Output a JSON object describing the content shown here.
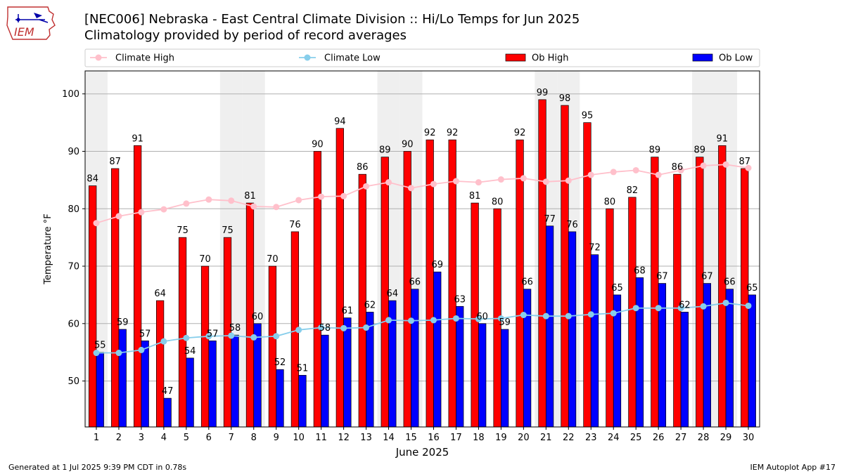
{
  "header": {
    "title": "[NEC006] Nebraska - East Central Climate Division :: Hi/Lo Temps for Jun 2025",
    "subtitle": "Climatology provided by period of record averages"
  },
  "logo": {
    "text": "IEM"
  },
  "footer": {
    "left": "Generated at 1 Jul 2025 9:39 PM CDT in 0.78s",
    "right": "IEM Autoplot App #17"
  },
  "chart_data": {
    "type": "bar",
    "xlabel": "June 2025",
    "ylabel": "Temperature °F",
    "ylim": [
      42,
      104
    ],
    "yticks": [
      50,
      60,
      70,
      80,
      90,
      100
    ],
    "grid": true,
    "legend_position": "top",
    "categories": [
      "1",
      "2",
      "3",
      "4",
      "5",
      "6",
      "7",
      "8",
      "9",
      "10",
      "11",
      "12",
      "13",
      "14",
      "15",
      "16",
      "17",
      "18",
      "19",
      "20",
      "21",
      "22",
      "23",
      "24",
      "25",
      "26",
      "27",
      "28",
      "29",
      "30"
    ],
    "weekend_days": [
      1,
      7,
      8,
      14,
      15,
      21,
      22,
      28,
      29
    ],
    "series": [
      {
        "name": "Ob High",
        "kind": "bar",
        "color": "#ff0000",
        "values": [
          84,
          87,
          91,
          64,
          75,
          70,
          75,
          81,
          70,
          76,
          90,
          94,
          86,
          89,
          90,
          92,
          92,
          81,
          80,
          92,
          99,
          98,
          95,
          80,
          82,
          89,
          86,
          89,
          91,
          87
        ]
      },
      {
        "name": "Ob Low",
        "kind": "bar",
        "color": "#0000ff",
        "values": [
          55,
          59,
          57,
          47,
          54,
          57,
          58,
          60,
          52,
          51,
          58,
          61,
          62,
          64,
          66,
          69,
          63,
          60,
          59,
          66,
          77,
          76,
          72,
          65,
          68,
          67,
          62,
          67,
          66,
          65
        ]
      },
      {
        "name": "Climate High",
        "kind": "line",
        "color": "#ffc0cb",
        "values": [
          77.5,
          78.7,
          79.4,
          79.9,
          80.9,
          81.6,
          81.4,
          80.4,
          80.3,
          81.5,
          82.1,
          82.2,
          83.9,
          84.6,
          83.6,
          84.3,
          84.8,
          84.6,
          85.1,
          85.3,
          84.7,
          84.9,
          85.9,
          86.4,
          86.7,
          85.9,
          86.7,
          87.5,
          87.7,
          87.1
        ]
      },
      {
        "name": "Climate Low",
        "kind": "line",
        "color": "#87ceeb",
        "values": [
          54.9,
          54.9,
          55.4,
          56.9,
          57.5,
          57.8,
          57.9,
          57.6,
          57.8,
          58.9,
          59.3,
          59.2,
          59.3,
          60.6,
          60.5,
          60.6,
          60.9,
          60.8,
          60.9,
          61.5,
          61.3,
          61.3,
          61.6,
          61.8,
          62.7,
          62.7,
          62.7,
          63.0,
          63.6,
          63.1
        ]
      }
    ]
  }
}
